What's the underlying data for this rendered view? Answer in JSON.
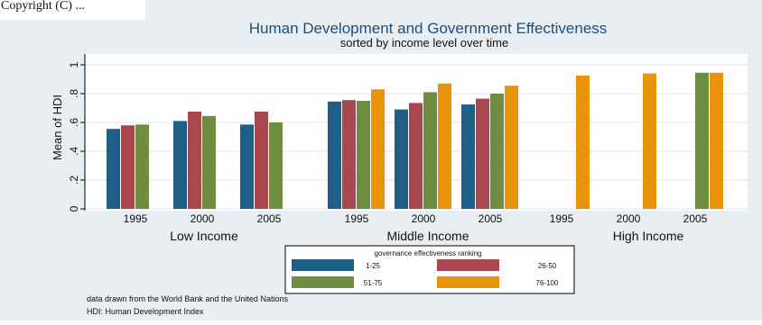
{
  "top_caption": "Copyright (C) ...",
  "colors": {
    "outer_bg": "#e8eef2",
    "plot_bg": "#ffffff",
    "title_text": "#1f4e79",
    "series": [
      "#1f5f86",
      "#a8484e",
      "#6f8d40",
      "#e8930a"
    ]
  },
  "chart_data": {
    "type": "bar",
    "title": "Human Development and Government Effectiveness",
    "subtitle": "sorted by income level over time",
    "ylabel": "Mean of HDI",
    "ylim": [
      0,
      1
    ],
    "yticks": [
      "0",
      ".2",
      ".4",
      ".6",
      ".8",
      "1"
    ],
    "grid": true,
    "legend_placement": "bottom-center",
    "legend_title": "governance effectiveness ranking",
    "series": [
      {
        "name": "1-25"
      },
      {
        "name": "26-50"
      },
      {
        "name": "51-75"
      },
      {
        "name": "76-100"
      }
    ],
    "groups": [
      {
        "label": "Low Income",
        "years": [
          {
            "year": "1995",
            "values": [
              0.555,
              0.58,
              0.585,
              null
            ]
          },
          {
            "year": "2000",
            "values": [
              0.61,
              0.675,
              0.645,
              null
            ]
          },
          {
            "year": "2005",
            "values": [
              0.585,
              0.675,
              0.6,
              null
            ]
          }
        ]
      },
      {
        "label": "Middle Income",
        "years": [
          {
            "year": "1995",
            "values": [
              0.745,
              0.755,
              0.75,
              0.83
            ]
          },
          {
            "year": "2000",
            "values": [
              0.69,
              0.735,
              0.81,
              0.87
            ]
          },
          {
            "year": "2005",
            "values": [
              0.725,
              0.765,
              0.8,
              0.855
            ]
          }
        ]
      },
      {
        "label": "High Income",
        "years": [
          {
            "year": "1995",
            "values": [
              null,
              null,
              null,
              0.925
            ]
          },
          {
            "year": "2000",
            "values": [
              null,
              null,
              null,
              0.94
            ]
          },
          {
            "year": "2005",
            "values": [
              null,
              null,
              0.945,
              0.945
            ]
          }
        ]
      }
    ],
    "notes": [
      "data drawn from the World Bank and the United Nations",
      "HDI: Human Development Index"
    ]
  }
}
